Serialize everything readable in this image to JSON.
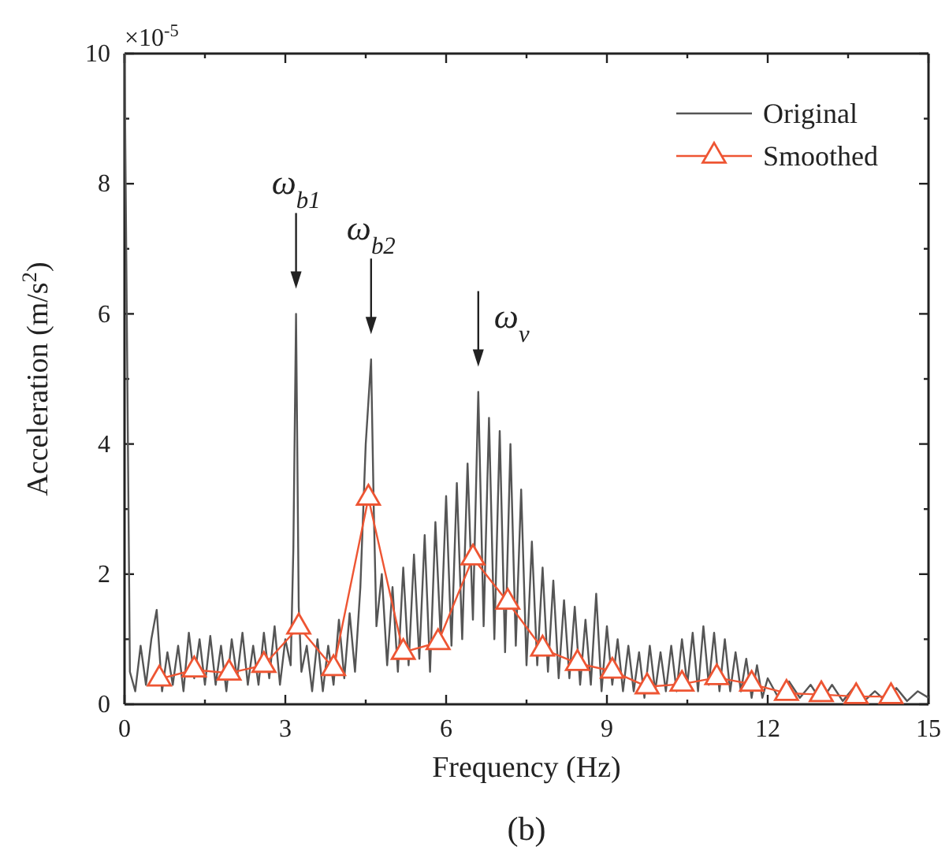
{
  "chart_data": {
    "type": "line",
    "title": "(b)",
    "xlabel": "Frequency (Hz)",
    "ylabel": "Acceleration (m/s$^{2}$)",
    "xlim": [
      0,
      15
    ],
    "ylim": [
      0,
      10
    ],
    "xticks": [
      0,
      {
        "value": 1.5,
        "label": null
      },
      3,
      {
        "value": 4.5,
        "label": null
      },
      6,
      {
        "value": 7.5,
        "label": null
      },
      9,
      {
        "value": 10.5,
        "label": null
      },
      12,
      {
        "value": 13.5,
        "label": null
      },
      15
    ],
    "yticks": [
      0,
      {
        "value": 1,
        "label": null
      },
      2,
      {
        "value": 3,
        "label": null
      },
      4,
      {
        "value": 5,
        "label": null
      },
      6,
      {
        "value": 7,
        "label": null
      },
      8,
      {
        "value": 9,
        "label": null
      },
      10
    ],
    "grid": false,
    "legend": "top right",
    "annotations": [
      "×10$^{-5}$",
      {
        "text": "ω$_{b1}$",
        "x": 3.2,
        "y": 6.0
      },
      {
        "text": "ω$_{b2}$",
        "x": 4.6,
        "y": 5.3
      },
      {
        "text": "ω$_{v}$",
        "x": 6.6,
        "y": 4.8
      }
    ],
    "series": [
      {
        "name": "Original",
        "color": "#555555",
        "marker": "none",
        "x": [
          0,
          0.1,
          0.2,
          0.3,
          0.4,
          0.5,
          0.6,
          0.7,
          0.8,
          0.9,
          1.0,
          1.1,
          1.2,
          1.3,
          1.4,
          1.5,
          1.6,
          1.7,
          1.8,
          1.9,
          2.0,
          2.1,
          2.2,
          2.3,
          2.4,
          2.5,
          2.6,
          2.7,
          2.8,
          2.9,
          3.0,
          3.1,
          3.15,
          3.2,
          3.25,
          3.3,
          3.4,
          3.5,
          3.6,
          3.7,
          3.8,
          3.9,
          4.0,
          4.1,
          4.2,
          4.3,
          4.4,
          4.5,
          4.6,
          4.65,
          4.7,
          4.8,
          4.9,
          5.0,
          5.1,
          5.2,
          5.3,
          5.4,
          5.5,
          5.6,
          5.7,
          5.8,
          5.9,
          6.0,
          6.1,
          6.2,
          6.3,
          6.4,
          6.5,
          6.6,
          6.7,
          6.8,
          6.9,
          7.0,
          7.1,
          7.2,
          7.3,
          7.4,
          7.5,
          7.6,
          7.7,
          7.8,
          7.9,
          8.0,
          8.1,
          8.2,
          8.3,
          8.4,
          8.5,
          8.6,
          8.7,
          8.8,
          8.9,
          9.0,
          9.1,
          9.2,
          9.3,
          9.4,
          9.5,
          9.6,
          9.7,
          9.8,
          9.9,
          10.0,
          10.1,
          10.2,
          10.3,
          10.4,
          10.5,
          10.6,
          10.7,
          10.8,
          10.9,
          11.0,
          11.1,
          11.2,
          11.3,
          11.4,
          11.5,
          11.6,
          11.7,
          11.8,
          11.9,
          12.0,
          12.2,
          12.4,
          12.6,
          12.8,
          13.0,
          13.2,
          13.4,
          13.6,
          13.8,
          14.0,
          14.2,
          14.4,
          14.6,
          14.8,
          15.0
        ],
        "values": [
          10,
          0.5,
          0.2,
          0.9,
          0.3,
          1.0,
          1.45,
          0.2,
          0.8,
          0.3,
          0.9,
          0.2,
          1.1,
          0.4,
          1.0,
          0.3,
          1.05,
          0.3,
          0.9,
          0.2,
          1.0,
          0.4,
          1.1,
          0.3,
          0.9,
          0.3,
          1.1,
          0.4,
          1.2,
          0.3,
          1.0,
          0.6,
          2.4,
          6.0,
          1.5,
          0.5,
          0.9,
          0.2,
          1.0,
          0.2,
          0.9,
          0.3,
          1.3,
          0.4,
          1.4,
          0.5,
          1.8,
          4.0,
          5.3,
          3.0,
          1.2,
          2.0,
          0.6,
          1.8,
          0.5,
          2.1,
          0.6,
          2.3,
          0.7,
          2.6,
          0.5,
          2.8,
          1.0,
          3.2,
          0.9,
          3.4,
          1.0,
          3.7,
          1.3,
          4.8,
          1.2,
          4.4,
          1.0,
          4.2,
          0.8,
          4.0,
          0.9,
          3.3,
          0.6,
          2.5,
          0.6,
          2.1,
          0.5,
          1.9,
          0.4,
          1.6,
          0.4,
          1.5,
          0.3,
          1.3,
          0.3,
          1.7,
          0.2,
          1.2,
          0.3,
          1.0,
          0.2,
          0.9,
          0.2,
          0.8,
          0.1,
          0.9,
          0.2,
          0.8,
          0.2,
          0.9,
          0.2,
          1.0,
          0.3,
          1.1,
          0.2,
          1.2,
          0.3,
          1.1,
          0.2,
          1.0,
          0.2,
          0.8,
          0.2,
          0.7,
          0.1,
          0.6,
          0.1,
          0.4,
          0.1,
          0.35,
          0.1,
          0.3,
          0.05,
          0.3,
          0.05,
          0.25,
          0.05,
          0.2,
          0.05,
          0.25,
          0.05,
          0.2,
          0.1
        ]
      },
      {
        "name": "Smoothed",
        "color": "#ee5533",
        "marker": "triangle",
        "x": [
          0.65,
          1.3,
          1.95,
          2.6,
          3.25,
          3.9,
          4.55,
          5.2,
          5.85,
          6.5,
          7.15,
          7.8,
          8.45,
          9.1,
          9.75,
          10.4,
          11.05,
          11.7,
          12.35,
          13.0,
          13.65,
          14.3
        ],
        "values": [
          0.39,
          0.53,
          0.48,
          0.6,
          1.19,
          0.55,
          3.17,
          0.8,
          0.95,
          2.25,
          1.57,
          0.85,
          0.63,
          0.51,
          0.27,
          0.31,
          0.41,
          0.31,
          0.17,
          0.15,
          0.12,
          0.12
        ]
      }
    ]
  }
}
